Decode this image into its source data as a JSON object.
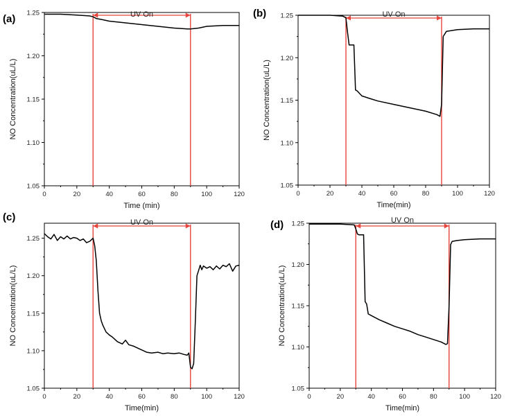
{
  "chart_data": [
    {
      "panel": "(a)",
      "type": "line",
      "xlabel": "Time (min)",
      "ylabel": "NO Concentration(uL/L)",
      "xlim": [
        0,
        120
      ],
      "ylim": [
        1.05,
        1.25
      ],
      "xticks": [
        0,
        20,
        40,
        60,
        80,
        100,
        120
      ],
      "yticks": [
        1.05,
        1.1,
        1.15,
        1.2,
        1.25
      ],
      "annotation": {
        "text": "UV On",
        "x_start": 30,
        "x_end": 90,
        "color": "#e8453c"
      },
      "series": [
        {
          "color": "#000000",
          "x": [
            0,
            10,
            20,
            28,
            30,
            32,
            35,
            40,
            50,
            60,
            70,
            80,
            88,
            90,
            95,
            100,
            110,
            120
          ],
          "y": [
            1.248,
            1.248,
            1.247,
            1.246,
            1.245,
            1.243,
            1.242,
            1.24,
            1.238,
            1.236,
            1.234,
            1.232,
            1.231,
            1.231,
            1.232,
            1.234,
            1.235,
            1.235
          ]
        }
      ]
    },
    {
      "panel": "(b)",
      "type": "line",
      "xlabel": "Time(min)",
      "ylabel": "NO Concentration(uL/L)",
      "xlim": [
        0,
        120
      ],
      "ylim": [
        1.05,
        1.25
      ],
      "xticks": [
        0,
        20,
        40,
        60,
        80,
        100,
        120
      ],
      "yticks": [
        1.05,
        1.1,
        1.15,
        1.2,
        1.25
      ],
      "annotation": {
        "text": "UV On",
        "x_start": 30,
        "x_end": 90,
        "color": "#e8453c"
      },
      "series": [
        {
          "color": "#000000",
          "x": [
            0,
            10,
            20,
            28,
            30,
            31,
            32,
            35,
            35.5,
            36,
            37,
            40,
            45,
            50,
            60,
            70,
            80,
            87,
            89,
            90,
            91,
            93,
            100,
            110,
            120
          ],
          "y": [
            1.25,
            1.25,
            1.25,
            1.249,
            1.247,
            1.23,
            1.215,
            1.215,
            1.19,
            1.162,
            1.161,
            1.155,
            1.152,
            1.149,
            1.145,
            1.141,
            1.137,
            1.133,
            1.131,
            1.145,
            1.225,
            1.231,
            1.233,
            1.234,
            1.234
          ]
        }
      ]
    },
    {
      "panel": "(c)",
      "type": "line",
      "xlabel": "Time(min)",
      "ylabel": "NO Concentration(uL/L)",
      "xlim": [
        0,
        120
      ],
      "ylim": [
        1.05,
        1.27
      ],
      "xticks": [
        0,
        20,
        40,
        60,
        80,
        100,
        120
      ],
      "yticks": [
        1.05,
        1.1,
        1.15,
        1.2,
        1.25
      ],
      "annotation": {
        "text": "UV On",
        "x_start": 30,
        "x_end": 90,
        "color": "#e8453c"
      },
      "series": [
        {
          "color": "#000000",
          "x": [
            0,
            2,
            4,
            6,
            8,
            10,
            12,
            14,
            16,
            18,
            20,
            22,
            24,
            26,
            28,
            30,
            31,
            32,
            33,
            34,
            35,
            36,
            38,
            40,
            42,
            45,
            48,
            50,
            52,
            55,
            58,
            60,
            63,
            66,
            70,
            73,
            76,
            80,
            83,
            86,
            88,
            89,
            90,
            91,
            92,
            93,
            94,
            95,
            96,
            97,
            98,
            100,
            102,
            104,
            106,
            108,
            110,
            112,
            114,
            116,
            118,
            120
          ],
          "y": [
            1.256,
            1.252,
            1.249,
            1.255,
            1.247,
            1.252,
            1.249,
            1.253,
            1.249,
            1.251,
            1.25,
            1.247,
            1.249,
            1.244,
            1.246,
            1.25,
            1.24,
            1.22,
            1.18,
            1.15,
            1.14,
            1.134,
            1.125,
            1.121,
            1.118,
            1.112,
            1.109,
            1.114,
            1.108,
            1.106,
            1.103,
            1.101,
            1.098,
            1.097,
            1.098,
            1.096,
            1.097,
            1.096,
            1.097,
            1.095,
            1.094,
            1.097,
            1.078,
            1.076,
            1.083,
            1.14,
            1.2,
            1.207,
            1.214,
            1.208,
            1.213,
            1.21,
            1.212,
            1.208,
            1.213,
            1.209,
            1.214,
            1.212,
            1.216,
            1.206,
            1.213,
            1.214
          ]
        }
      ]
    },
    {
      "panel": "(d)",
      "type": "line",
      "xlabel": "Time(min)",
      "ylabel": "NO Concentration(uL/L)",
      "xlim": [
        0,
        120
      ],
      "ylim": [
        1.05,
        1.25
      ],
      "xticks": [
        0,
        20,
        40,
        60,
        80,
        100,
        120
      ],
      "yticks": [
        1.05,
        1.1,
        1.15,
        1.2,
        1.25
      ],
      "annotation": {
        "text": "UV On",
        "x_start": 30,
        "x_end": 90,
        "color": "#e8453c"
      },
      "series": [
        {
          "color": "#000000",
          "x": [
            0,
            10,
            20,
            29,
            30,
            31,
            32,
            35,
            36,
            37,
            38,
            40,
            45,
            50,
            55,
            60,
            65,
            70,
            75,
            80,
            85,
            88,
            89,
            90,
            91,
            92,
            95,
            100,
            110,
            120
          ],
          "y": [
            1.249,
            1.249,
            1.249,
            1.248,
            1.243,
            1.237,
            1.236,
            1.236,
            1.155,
            1.152,
            1.14,
            1.138,
            1.133,
            1.129,
            1.125,
            1.122,
            1.119,
            1.115,
            1.112,
            1.109,
            1.106,
            1.103,
            1.104,
            1.15,
            1.224,
            1.228,
            1.229,
            1.23,
            1.231,
            1.231
          ]
        }
      ]
    }
  ]
}
